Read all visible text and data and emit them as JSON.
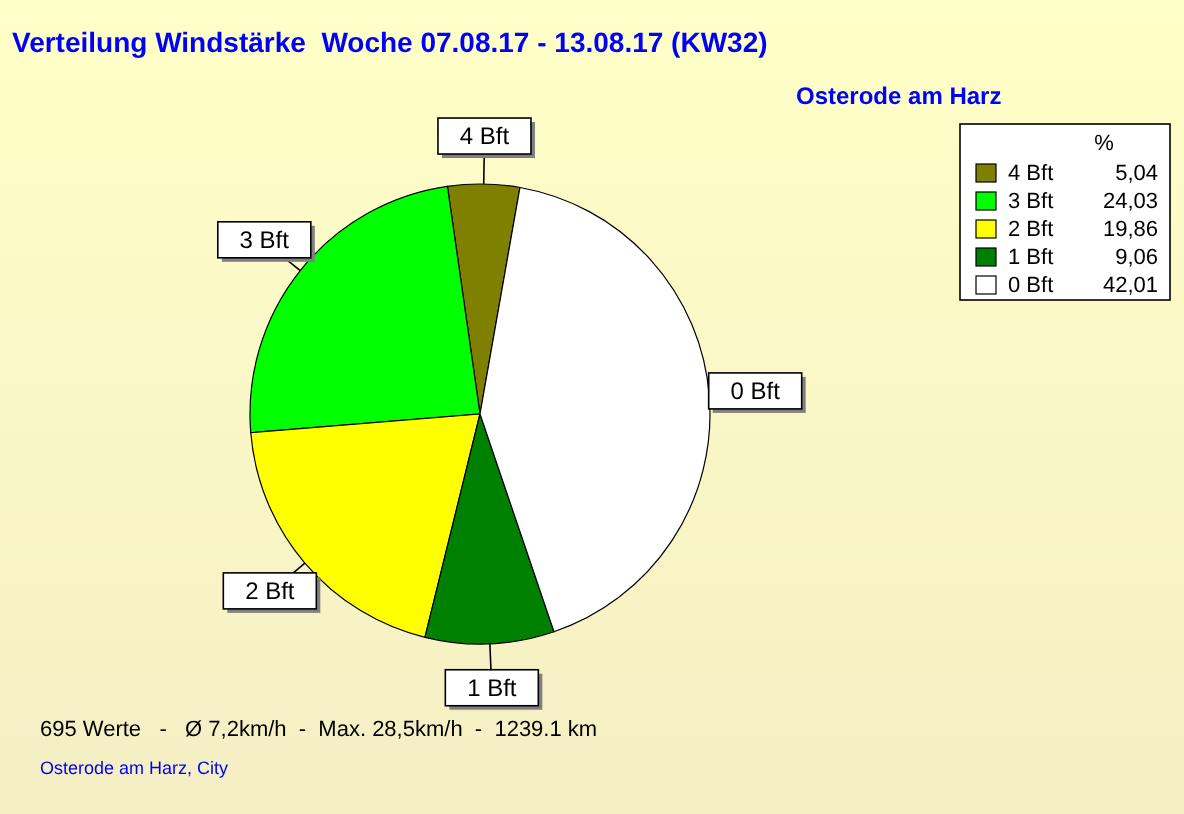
{
  "chart_data": {
    "type": "pie",
    "title": "Verteilung Windstärke  Woche 07.08.17 - 13.08.17 (KW32)",
    "subtitle": "Osterode am Harz",
    "categories": [
      "4 Bft",
      "3 Bft",
      "2 Bft",
      "1 Bft",
      "0 Bft"
    ],
    "values": [
      5.04,
      24.03,
      19.86,
      9.06,
      42.01
    ],
    "colors": [
      "#808000",
      "#00ff00",
      "#ffff00",
      "#008000",
      "#ffffff"
    ],
    "value_labels": [
      "5,04",
      "24,03",
      "19,86",
      "9,06",
      "42,01"
    ],
    "legend_title": "%",
    "legend": "top right",
    "annotations": [
      "695 Werte   -   Ø 7,2km/h  -  Max. 28,5km/h  -  1239.1 km",
      "Osterode am Harz, City"
    ]
  }
}
